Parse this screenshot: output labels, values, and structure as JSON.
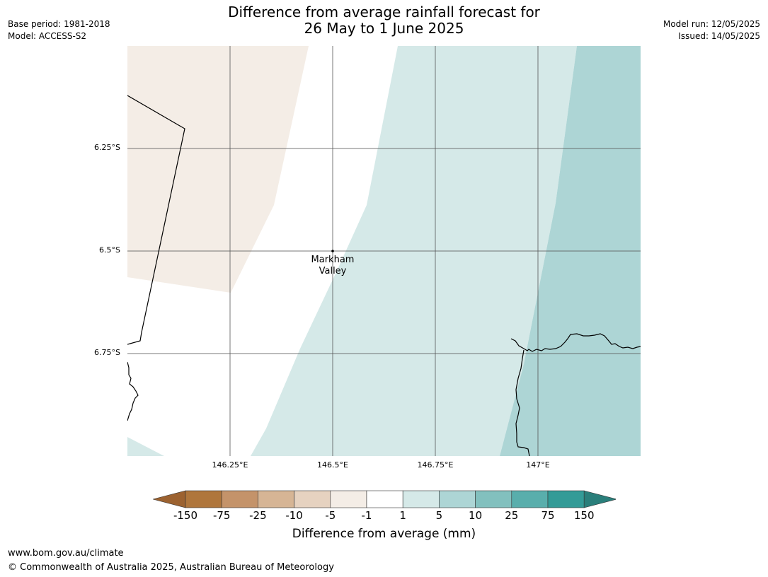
{
  "title": {
    "line1": "Difference from average rainfall forecast for",
    "line2": "26 May to 1 June 2025"
  },
  "meta": {
    "base_period": "Base period: 1981-2018",
    "model": "Model: ACCESS-S2",
    "model_run": "Model run: 12/05/2025",
    "issued": "Issued: 14/05/2025"
  },
  "map": {
    "lat_labels": [
      "6.25°S",
      "6.5°S",
      "6.75°S"
    ],
    "lon_labels": [
      "146.25°E",
      "146.5°E",
      "146.75°E",
      "147°E"
    ],
    "place": {
      "line1": "Markham",
      "line2": "Valley"
    }
  },
  "legend": {
    "title": "Difference from average (mm)",
    "ticks": [
      "-150",
      "-75",
      "-25",
      "-10",
      "-5",
      "-1",
      "1",
      "5",
      "10",
      "25",
      "75",
      "150"
    ],
    "colors": [
      "#9c6230",
      "#af763c",
      "#c4936a",
      "#d6b595",
      "#e6d2c0",
      "#f4ede6",
      "#ffffff",
      "#d5e9e8",
      "#add5d5",
      "#82c0be",
      "#59aeac",
      "#339b97",
      "#2a7f7b"
    ]
  },
  "footer": {
    "url": "www.bom.gov.au/climate",
    "copyright": "© Commonwealth of Australia 2025, Australian Bureau of Meteorology"
  }
}
